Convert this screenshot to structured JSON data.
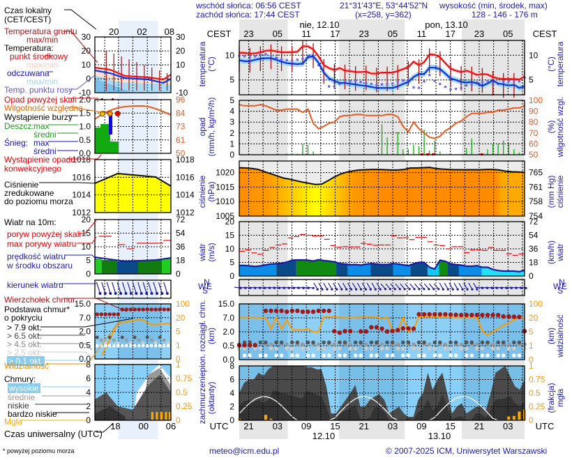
{
  "header": {
    "sunrise": "wschód słońca: 06:56 CEST",
    "sunset": "zachód słońca: 17:44 CEST",
    "coords": "21°31'43\"E, 53°44'52\"N",
    "grid": "(x=258,  y=362)",
    "elevation_title": "wysokość (min, środek, max)",
    "elevation_values": "128 - 146 - 176 m"
  },
  "legend": {
    "local_time": "Czas lokalny",
    "local_time_zone": "(CET/CEST)",
    "ground_temp": "Temperatura gruntu",
    "ground_temp_sub": "max/min",
    "temperature": "Temperatura:",
    "mid_point": "punkt środkowy",
    "mid_maxmin": "max/min",
    "apparent": "odczuwana",
    "apparent_maxmin": "max/min",
    "dew_point": "Temp. punktu rosy",
    "precip_over": "Opad powyżej skali",
    "humidity": "Wilgotność względna",
    "storm": "Wystąpienie burzy",
    "rain": "Deszcz:",
    "rain_max": "max",
    "rain_avg": "średni",
    "snow": "Śnieg:",
    "snow_max": "max",
    "snow_avg": "średni",
    "convective": "Wystąpienie opadu",
    "convective2": "konwekcyjnego",
    "pressure1": "Ciśnienie",
    "pressure2": "zredukowane",
    "pressure3": "do poziomu morza",
    "wind_title": "Wiatr na 10m:",
    "gust_over": "poryw powyżej skali",
    "gust_max": "max porywy wiatru",
    "wind_speed1": "prędkość wiatru",
    "wind_speed2": "w środku obszaru",
    "wind_dir": "kierunek wiatru",
    "cloud_top": "Wierzchołek chmur",
    "cloud_base1": "Podstawa chmur*",
    "cloud_base2": "o pokryciu",
    "okt79": "> 7.9 okt.",
    "okt65": "> 6.5 okt.",
    "okt45": "> 4.5 okt.",
    "okt25": "> 2.5 okt.",
    "okt01": "> 0.1 okt.",
    "visibility": "Widzialność",
    "clouds": "Chmury:",
    "high": "wysokie",
    "mid": "średnie",
    "low": "niskie",
    "very_low": "bardzo niskie",
    "fog": "Mgła",
    "utc": "Czas uniwersalny (UTC)",
    "footnote": "* powyżej poziomu morza",
    "mini_top_ticks": [
      "20",
      "02",
      "08"
    ],
    "mini_bottom_ticks": [
      "18",
      "00",
      "06"
    ],
    "mini_temp_left": [
      "30",
      "20",
      "10",
      "0",
      "-10"
    ],
    "mini_temp_right": [
      "30",
      "20",
      "10",
      "0",
      "-10"
    ],
    "mini_precip_left": [
      "2.0",
      "1.5",
      "1.0",
      "0.5",
      "0.0"
    ],
    "mini_precip_right": [
      "96",
      "84",
      "73",
      "61",
      "50"
    ],
    "mini_press": [
      "1018",
      "1016",
      "1014",
      "1012"
    ],
    "mini_wind_left": [
      "20",
      "15",
      "10",
      "5",
      "0"
    ],
    "mini_wind_right": [
      "72",
      "54",
      "36",
      "18",
      "0"
    ],
    "mini_cloud_left": [
      "15.0",
      "7.0",
      "2.0",
      "0.5",
      "0.0"
    ],
    "mini_cloud_right": [
      "100",
      "20",
      "5",
      "1",
      "0"
    ],
    "mini_cov_left": [
      "8",
      "6",
      "4",
      "2",
      "0"
    ],
    "mini_cov_right": [
      "1",
      "0.75",
      "0.5",
      "0.25",
      "0"
    ]
  },
  "main": {
    "tz_label": "CEST",
    "utc_label": "UTC",
    "day1": "nie, 12.10",
    "day2": "pon, 13.10",
    "day1_utc": "12.10",
    "day2_utc": "13.10",
    "top_ticks": [
      "23",
      "05",
      "11",
      "17",
      "23",
      "05",
      "11",
      "17",
      "23",
      "05"
    ],
    "bottom_ticks": [
      "21",
      "03",
      "09",
      "15",
      "21",
      "03",
      "09",
      "15",
      "21",
      "03"
    ],
    "axis_labels": {
      "temp_left": "temperatura\n(°C)",
      "temp_right": "(°C)\ntemperatura",
      "precip_left": "opad\n(mm/h, kg/m²/h)",
      "precip_right": "(%)\nwilgotność wzgl.",
      "press_left": "ciśnienie\n(hPa)",
      "press_right": "(mm Hg)\nciśnienie",
      "wind_left": "wiatr\n(m/s)",
      "wind_right": "(km/h)\nwiatr",
      "cloud_left": "pion. rozciągł. chm.\n(km)",
      "cloud_right": "(km)\nwidzialność",
      "cov_left": "zachmurzenie\n(oktanty)",
      "cov_right": "(frakcja)\nmgła"
    },
    "compass": {
      "n": "N",
      "w": "W",
      "e": "E",
      "s": "S"
    }
  },
  "footer": {
    "email": "meteo@icm.edu.pl",
    "copyright": "© 2007-2025 ICM, Uniwersytet Warszawski"
  },
  "colors": {
    "temp": "#ee1111",
    "apparent": "#1133dd",
    "dew": "#7766dd",
    "humidity": "#e85a20",
    "rain": "#11aa11",
    "pressure_fill": "#ff8c00",
    "gust": "#ee1111",
    "wind_fill": "#0d8de0",
    "visibility": "#ff9900",
    "cloud_top": "#a01818",
    "sky": "#7dc6f0"
  },
  "chart_data": [
    {
      "type": "line",
      "title": "temperatura (°C)",
      "ylim": [
        2,
        13
      ],
      "yticks": [
        5,
        10
      ],
      "series": [
        {
          "name": "punkt środkowy",
          "values": [
            10.5,
            10.5,
            10.3,
            10.4,
            10.6,
            10.9,
            11.0,
            10.8,
            10.6,
            10.6,
            10.6,
            10.7,
            11.8,
            11.8,
            11.2,
            9.8,
            8.0,
            7.4,
            7.0,
            7.4,
            6.9,
            6.8,
            6.6,
            6.6,
            6.7,
            6.3,
            6.3,
            6.5,
            6.5,
            6.5,
            6.8,
            7.2,
            7.6,
            8.7,
            8.0,
            8.6,
            10.2,
            10.1,
            9.6,
            8.4,
            7.3,
            6.9,
            6.6,
            6.9,
            6.5,
            6.0,
            6.2,
            6.1,
            5.6,
            5.3,
            5.2,
            5.2,
            5.2,
            5.1,
            5.7
          ]
        },
        {
          "name": "odczuwana",
          "values": [
            9.0,
            8.8,
            8.8,
            9.1,
            9.3,
            9.4,
            9.4,
            9.1,
            8.7,
            8.4,
            8.3,
            8.2,
            8.3,
            9.6,
            9.8,
            8.5,
            6.5,
            5.3,
            4.8,
            4.4,
            4.4,
            4.2,
            4.1,
            3.9,
            3.8,
            3.6,
            3.4,
            3.4,
            3.4,
            3.4,
            3.7,
            4.2,
            4.6,
            5.6,
            6.2,
            6.2,
            7.5,
            7.5,
            7.2,
            6.3,
            5.3,
            5.0,
            4.6,
            4.5,
            4.6,
            4.3,
            3.8,
            4.3,
            4.9,
            4.3,
            4.1,
            3.9,
            4.0,
            3.4,
            3.7
          ]
        },
        {
          "name": "temp. punktu rosy",
          "values": [
            9.9,
            9.8,
            9.7,
            9.8,
            10.2,
            10.2,
            9.9,
            9.5,
            9.1,
            9.0,
            9.0,
            9.1,
            9.3,
            9.9,
            9.7,
            8.0,
            5.0,
            3.7,
            3.7,
            4.2,
            4.5,
            4.7,
            4.8,
            4.6,
            4.4,
            4.2,
            4.0,
            4.1,
            4.2,
            4.3,
            4.6,
            4.9,
            5.0,
            3.5,
            3.4,
            4.7,
            6.0,
            4.8,
            4.2,
            3.6,
            3.1,
            3.2,
            3.4,
            3.9,
            4.0,
            4.5,
            4.6,
            4.8,
            4.1,
            4.2,
            4.7,
            4.8,
            4.8,
            4.7,
            5.5
          ]
        }
      ]
    },
    {
      "type": "bar",
      "title": "opad (mm/h, kg/m²/h) / wilgotność wzgl. (%)",
      "ylim": [
        0,
        5
      ],
      "y2lim": [
        50,
        100
      ],
      "yticks": [
        0,
        1,
        2,
        3,
        4,
        5
      ],
      "y2ticks": [
        50,
        60,
        70,
        80,
        90,
        100
      ],
      "series": [
        {
          "name": "wilgotność względna (%)",
          "values": [
            96,
            95,
            95,
            95,
            96,
            95,
            93,
            91,
            91,
            92,
            92,
            92,
            89,
            92,
            79,
            74,
            76,
            79,
            80,
            85,
            86,
            86,
            87,
            87,
            86,
            86,
            86,
            86,
            87,
            87,
            85,
            76,
            71,
            80,
            74,
            70,
            66,
            65,
            67,
            72,
            75,
            79,
            81,
            85,
            88,
            88,
            88,
            89,
            89,
            91,
            91,
            92,
            93,
            93,
            95
          ]
        },
        {
          "name": "opad max (mm/h)",
          "values": [
            0,
            0,
            0,
            0,
            0,
            0,
            0,
            0,
            0,
            0.1,
            0.1,
            0.1,
            1.0,
            0.9,
            0.3,
            0,
            0,
            0,
            0,
            0,
            0,
            0,
            0,
            0,
            0,
            0,
            0,
            2.8,
            1.6,
            0,
            2.1,
            0.5,
            0.5,
            0.9,
            0.8,
            2.3,
            0.4,
            1.3,
            0.3,
            0,
            0,
            0,
            0,
            0.6,
            1.5,
            0,
            0,
            0.5,
            1.0,
            1.0,
            1.3,
            1.1,
            0.5,
            0.2,
            0
          ]
        }
      ]
    },
    {
      "type": "area",
      "title": "ciśnienie (hPa)",
      "ylim": [
        1005,
        1024
      ],
      "yticks": [
        1005,
        1010,
        1015,
        1020
      ],
      "y2ticks_mmHg": [
        754,
        758,
        761,
        765
      ],
      "series": [
        {
          "name": "ciśnienie",
          "values": [
            1021.7,
            1021.6,
            1021.4,
            1021.1,
            1020.3,
            1019.6,
            1018.8,
            1018.1,
            1017.7,
            1017.2,
            1016.7,
            1016.3,
            1015.9,
            1016.0,
            1017.2,
            1018.5,
            1019.5,
            1020.2,
            1020.6,
            1020.9,
            1021.0,
            1021.1,
            1021.1,
            1021.0,
            1020.9,
            1020.9,
            1021.1,
            1021.6,
            1021.6,
            1021.7,
            1021.8,
            1021.4,
            1021.2,
            1021.1,
            1021.0,
            1021.0,
            1021.0,
            1021.0,
            1021.0,
            1021.1,
            1021.1,
            1020.9,
            1020.5,
            1020.3,
            1020.2,
            1020.1
          ]
        }
      ]
    },
    {
      "type": "line",
      "title": "wiatr (m/s)",
      "ylim": [
        0,
        20
      ],
      "yticks": [
        0,
        5,
        10,
        15,
        20
      ],
      "y2ticks_kmh": [
        0,
        18,
        36,
        54,
        72
      ],
      "series": [
        {
          "name": "prędkość wiatru (m/s)",
          "values": [
            3.9,
            3.9,
            3.7,
            3.5,
            3.7,
            4.1,
            4.4,
            4.5,
            4.7,
            5.1,
            5.8,
            5.9,
            5.9,
            5.8,
            5.5,
            6.0,
            5.7,
            5.5,
            5.2,
            4.6,
            4.4,
            4.1,
            4.2,
            4.0,
            4.3,
            4.6,
            4.4,
            4.2,
            4.2,
            4.6,
            4.4,
            4.1,
            3.8,
            4.5,
            5.0,
            5.0,
            3.2,
            2.6,
            5.8,
            5.4,
            4.5,
            4.2,
            4.0,
            3.6,
            3.6,
            3.8,
            3.2,
            3.2,
            2.4,
            2.0,
            1.8,
            1.8,
            1.8,
            1.6,
            2.1
          ]
        },
        {
          "name": "max porywy (m/s)",
          "values": [
            9.1,
            9.6,
            8.5,
            8.0,
            9.4,
            10.5,
            11.4,
            11.8,
            14.0,
            14.5,
            15.3,
            15.0,
            14.7,
            14.8,
            13.5,
            11.2,
            10.6,
            10.8,
            10.7,
            10.7,
            12.0,
            11.7,
            11.3,
            11.4,
            11.4,
            14.8,
            14.0,
            14.1,
            13.4,
            14.2,
            14.2,
            12.6,
            11.4,
            11.2,
            10.0,
            10.8,
            10.8,
            8.6,
            9.6,
            9.6,
            9.4,
            10.5,
            9.4,
            9.4,
            8.2,
            7.6,
            8.1
          ]
        }
      ]
    },
    {
      "type": "scatter",
      "title": "pion. rozciągł. chm. (km) / widzialność (km)",
      "yticks": [
        "0.0",
        "0.5",
        "2.0",
        "7.0",
        "15.0"
      ],
      "y2ticks": [
        "0",
        "1",
        "5",
        "20",
        "100"
      ],
      "series": [
        {
          "name": "widzialność (km)",
          "values": [
            22,
            22,
            22,
            22,
            21,
            21,
            8,
            20,
            8,
            18,
            7,
            7,
            7,
            8,
            5,
            5,
            25,
            25,
            24,
            23,
            22,
            22,
            22,
            23,
            24,
            25,
            24,
            19,
            24,
            6,
            6,
            24,
            5,
            8,
            24,
            25,
            25,
            25,
            24,
            24,
            23,
            22,
            22,
            22,
            22,
            22,
            6,
            4,
            5,
            8,
            12,
            14,
            18,
            20,
            21
          ]
        },
        {
          "name": "wierzchołek chmur (km)",
          "values": [
            0.55,
            0.55,
            0.55,
            0.55,
            null,
            11,
            11,
            11,
            11,
            10.5,
            11,
            11,
            10.5,
            10.5,
            10.5,
            11,
            11,
            11,
            2.2,
            1.9,
            2.2,
            2.2,
            null,
            2.1,
            2.1,
            3.6,
            3.6,
            3.1,
            2.1,
            2.3,
            2.6,
            3.2,
            3.2,
            3.1,
            9,
            9,
            9,
            9,
            9,
            9,
            8.8,
            8.7,
            8.6,
            8.6,
            8.6,
            8.6,
            8.6,
            8.6,
            8.6,
            8.6,
            7.8,
            7.8,
            7.6,
            7.5,
            2.2
          ]
        }
      ]
    },
    {
      "type": "area",
      "title": "zachmurzenie (oktanty) / mgła (frakcja)",
      "ylim": [
        0,
        8
      ],
      "yticks": [
        0,
        2,
        4,
        6,
        8
      ],
      "y2ticks": [
        0,
        0.25,
        0.5,
        0.75,
        1
      ],
      "series": [
        {
          "name": "chmury niskie",
          "values": [
            4,
            5.5,
            6,
            6,
            7,
            6.5,
            7.5,
            8,
            8,
            8,
            8,
            8,
            8,
            8,
            7.8,
            7.8,
            7.5,
            7.5,
            5,
            1,
            1,
            2,
            3,
            4,
            5.2,
            2,
            2,
            3,
            3.5,
            3.8,
            3,
            1,
            1.5,
            2,
            1,
            0.5,
            0.5,
            3,
            4,
            7,
            4.5,
            6,
            7,
            4,
            1,
            2,
            2.5,
            1,
            1.5,
            2,
            2,
            1.5,
            4,
            7,
            7.5,
            8,
            6.5,
            5,
            4.5,
            6
          ]
        },
        {
          "name": "chmury wysokie",
          "values": [
            0,
            0,
            0,
            0,
            0,
            0,
            0,
            0,
            0,
            0,
            0,
            0,
            0,
            0,
            0,
            0,
            0,
            0,
            0,
            0,
            0,
            0,
            0,
            0,
            0,
            0,
            0,
            0,
            0,
            0,
            0,
            0,
            0,
            0,
            0,
            0,
            0,
            0,
            0,
            0,
            0,
            0,
            0,
            2.6,
            2.5,
            0,
            0,
            0,
            0,
            0,
            0,
            0,
            0,
            0,
            0
          ]
        },
        {
          "name": "mgła (frakcja)",
          "values": [
            0.03,
            0,
            0,
            0,
            0,
            0.1,
            0.03,
            0,
            0,
            0,
            0,
            0,
            0,
            0,
            0,
            0,
            0,
            0,
            0,
            0,
            0,
            0,
            0,
            0,
            0,
            0,
            0,
            0,
            0,
            0,
            0,
            0,
            0,
            0,
            0,
            0,
            0,
            0,
            0,
            0,
            0,
            0,
            0,
            0,
            0,
            0,
            0,
            0,
            0,
            0,
            0,
            0.07,
            0.08,
            0.16,
            0.2
          ]
        }
      ]
    }
  ]
}
